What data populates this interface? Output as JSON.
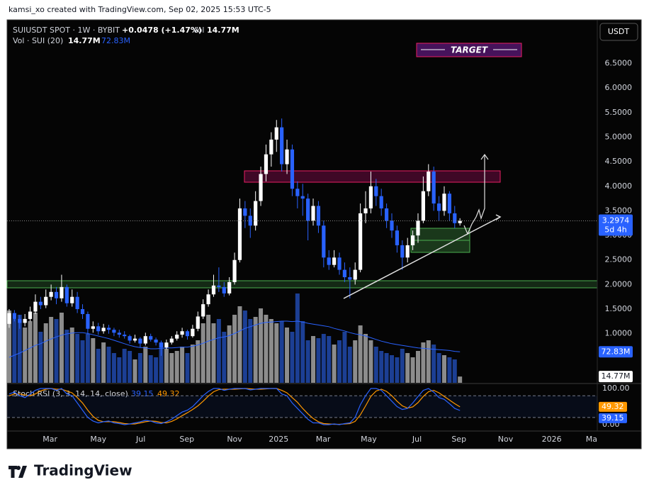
{
  "header": "kamsi_xo created with TradingView.com, Sep 02, 2025 15:53 UTC-5",
  "footer_logo": "TradingView",
  "chart_data": [
    {
      "type": "candlestick",
      "title": "SUIUSDT SPOT · 1W · BYBIT",
      "change": "+0.0478 (+1.47%)",
      "volume_label": "Vol",
      "currency": "USDT",
      "annotation": "TARGET",
      "last_price": 3.2974,
      "countdown": "5d 4h",
      "up_color": "#ffffff",
      "down_color": "#2962ff",
      "xlim": [
        -0.4,
        112.2
      ],
      "xticks": [
        {
          "value": 7.8,
          "label": "Mar"
        },
        {
          "value": 17.0,
          "label": "May"
        },
        {
          "value": 25.1,
          "label": "Jul"
        },
        {
          "value": 33.9,
          "label": "Sep"
        },
        {
          "value": 43.0,
          "label": "Nov"
        },
        {
          "value": 51.4,
          "label": "2025"
        },
        {
          "value": 59.9,
          "label": "Mar"
        },
        {
          "value": 68.6,
          "label": "May"
        },
        {
          "value": 77.8,
          "label": "Jul"
        },
        {
          "value": 85.8,
          "label": "Sep"
        },
        {
          "value": 94.7,
          "label": "Nov"
        },
        {
          "value": 103.5,
          "label": "2026"
        },
        {
          "value": 111.1,
          "label": "Ma"
        }
      ],
      "ylim": [
        0,
        7.33
      ],
      "yticks": [
        {
          "value": 1,
          "label": "1.0000"
        },
        {
          "value": 1.5,
          "label": "1.5000"
        },
        {
          "value": 2,
          "label": "2.0000"
        },
        {
          "value": 2.5,
          "label": "2.5000"
        },
        {
          "value": 3,
          "label": "3.0000"
        },
        {
          "value": 3.5,
          "label": "3.5000"
        },
        {
          "value": 4,
          "label": "4.0000"
        },
        {
          "value": 4.5,
          "label": "4.5000"
        },
        {
          "value": 5,
          "label": "5.0000"
        },
        {
          "value": 5.5,
          "label": "5.5000"
        },
        {
          "value": 6,
          "label": "6.0000"
        },
        {
          "value": 6.5,
          "label": "6.5000"
        }
      ],
      "candles": [
        [
          1.2,
          1.5,
          1.12,
          1.42
        ],
        [
          1.42,
          1.48,
          1.25,
          1.3
        ],
        [
          1.3,
          1.38,
          1.1,
          1.22
        ],
        [
          1.22,
          1.4,
          1.15,
          1.3
        ],
        [
          1.3,
          1.55,
          1.25,
          1.45
        ],
        [
          1.45,
          1.8,
          1.4,
          1.65
        ],
        [
          1.65,
          1.75,
          1.5,
          1.58
        ],
        [
          1.58,
          1.9,
          1.52,
          1.75
        ],
        [
          1.75,
          2.0,
          1.68,
          1.85
        ],
        [
          1.85,
          1.95,
          1.6,
          1.72
        ],
        [
          1.72,
          2.2,
          1.65,
          1.95
        ],
        [
          1.95,
          2.0,
          1.55,
          1.62
        ],
        [
          1.62,
          1.9,
          1.55,
          1.75
        ],
        [
          1.75,
          1.85,
          1.42,
          1.5
        ],
        [
          1.5,
          1.6,
          1.3,
          1.4
        ],
        [
          1.4,
          1.45,
          0.98,
          1.1
        ],
        [
          1.1,
          1.25,
          1.02,
          1.15
        ],
        [
          1.15,
          1.22,
          0.98,
          1.05
        ],
        [
          1.05,
          1.2,
          1.0,
          1.12
        ],
        [
          1.12,
          1.18,
          1.0,
          1.08
        ],
        [
          1.08,
          1.12,
          0.95,
          1.02
        ],
        [
          1.02,
          1.08,
          0.92,
          0.98
        ],
        [
          0.98,
          1.05,
          0.9,
          0.95
        ],
        [
          0.95,
          0.98,
          0.8,
          0.86
        ],
        [
          0.86,
          0.98,
          0.82,
          0.9
        ],
        [
          0.9,
          0.93,
          0.72,
          0.8
        ],
        [
          0.8,
          1.02,
          0.76,
          0.95
        ],
        [
          0.95,
          1.0,
          0.84,
          0.88
        ],
        [
          0.88,
          0.92,
          0.76,
          0.82
        ],
        [
          0.82,
          0.86,
          0.55,
          0.72
        ],
        [
          0.72,
          0.88,
          0.68,
          0.82
        ],
        [
          0.82,
          0.95,
          0.78,
          0.9
        ],
        [
          0.9,
          1.05,
          0.86,
          0.98
        ],
        [
          0.98,
          1.12,
          0.92,
          1.05
        ],
        [
          1.05,
          1.08,
          0.88,
          0.95
        ],
        [
          0.95,
          1.18,
          0.92,
          1.1
        ],
        [
          1.1,
          1.45,
          1.05,
          1.35
        ],
        [
          1.35,
          1.7,
          1.3,
          1.6
        ],
        [
          1.6,
          1.9,
          1.55,
          1.8
        ],
        [
          1.8,
          2.2,
          1.75,
          1.98
        ],
        [
          1.98,
          2.35,
          1.85,
          1.95
        ],
        [
          1.95,
          2.05,
          1.75,
          1.82
        ],
        [
          1.82,
          2.15,
          1.78,
          2.05
        ],
        [
          2.05,
          2.65,
          2.0,
          2.5
        ],
        [
          2.5,
          3.75,
          2.45,
          3.55
        ],
        [
          3.55,
          3.7,
          3.15,
          3.4
        ],
        [
          3.4,
          3.55,
          2.95,
          3.2
        ],
        [
          3.2,
          3.9,
          3.1,
          3.7
        ],
        [
          3.7,
          4.4,
          3.6,
          4.25
        ],
        [
          4.25,
          4.85,
          4.1,
          4.65
        ],
        [
          4.65,
          5.1,
          4.4,
          4.95
        ],
        [
          4.95,
          5.35,
          4.7,
          5.2
        ],
        [
          5.2,
          5.38,
          4.3,
          4.45
        ],
        [
          4.45,
          4.95,
          4.25,
          4.75
        ],
        [
          4.75,
          4.85,
          3.8,
          3.95
        ],
        [
          3.95,
          4.1,
          3.55,
          3.8
        ],
        [
          3.8,
          4.05,
          3.4,
          3.75
        ],
        [
          3.75,
          3.85,
          2.9,
          3.3
        ],
        [
          3.3,
          3.75,
          3.2,
          3.6
        ],
        [
          3.6,
          3.7,
          3.05,
          3.2
        ],
        [
          3.2,
          3.3,
          2.35,
          2.55
        ],
        [
          2.55,
          2.7,
          2.3,
          2.4
        ],
        [
          2.4,
          2.7,
          2.35,
          2.55
        ],
        [
          2.55,
          2.65,
          2.2,
          2.3
        ],
        [
          2.3,
          2.45,
          2.05,
          2.15
        ],
        [
          2.15,
          2.35,
          1.72,
          2.1
        ],
        [
          2.1,
          2.45,
          2.0,
          2.3
        ],
        [
          2.3,
          3.65,
          2.25,
          3.45
        ],
        [
          3.45,
          3.9,
          3.25,
          3.55
        ],
        [
          3.55,
          4.3,
          3.45,
          4.0
        ],
        [
          4.0,
          4.15,
          3.6,
          3.8
        ],
        [
          3.8,
          3.95,
          3.4,
          3.55
        ],
        [
          3.55,
          3.65,
          3.15,
          3.3
        ],
        [
          3.3,
          3.45,
          2.95,
          3.1
        ],
        [
          3.1,
          3.2,
          2.65,
          2.8
        ],
        [
          2.8,
          2.9,
          2.3,
          2.55
        ],
        [
          2.55,
          2.95,
          2.45,
          2.8
        ],
        [
          2.8,
          3.1,
          2.7,
          3.0
        ],
        [
          3.0,
          3.45,
          2.85,
          3.3
        ],
        [
          3.3,
          4.2,
          3.25,
          3.9
        ],
        [
          3.9,
          4.45,
          3.8,
          4.3
        ],
        [
          4.3,
          4.4,
          3.5,
          3.65
        ],
        [
          3.65,
          3.8,
          3.3,
          3.5
        ],
        [
          3.5,
          4.0,
          3.4,
          3.85
        ],
        [
          3.85,
          3.9,
          3.3,
          3.45
        ],
        [
          3.45,
          3.6,
          3.15,
          3.25
        ],
        [
          3.25,
          3.35,
          3.2,
          3.2974
        ]
      ]
    },
    {
      "type": "bar",
      "title": "Vol · SUI (20)",
      "legend_values": [
        "14.77M",
        "72.83M"
      ],
      "ylim": [
        0,
        220
      ],
      "up_color": "#8c8c8c",
      "down_color": "#1c3f94",
      "ma_color": "#2962ff",
      "values": [
        170,
        150,
        160,
        130,
        145,
        165,
        120,
        140,
        155,
        150,
        165,
        125,
        130,
        115,
        100,
        115,
        105,
        80,
        95,
        85,
        70,
        60,
        80,
        75,
        55,
        70,
        85,
        65,
        60,
        95,
        80,
        70,
        75,
        85,
        70,
        90,
        100,
        140,
        160,
        140,
        150,
        120,
        135,
        160,
        180,
        170,
        150,
        155,
        175,
        160,
        150,
        140,
        145,
        130,
        120,
        210,
        145,
        100,
        110,
        105,
        115,
        110,
        90,
        100,
        120,
        85,
        100,
        135,
        115,
        100,
        85,
        75,
        70,
        65,
        60,
        80,
        70,
        60,
        75,
        95,
        100,
        90,
        70,
        65,
        60,
        55,
        14.77
      ],
      "ma": [
        60,
        65,
        70,
        76,
        82,
        88,
        92,
        98,
        103,
        108,
        112,
        115,
        117,
        118,
        118,
        116,
        113,
        110,
        107,
        104,
        100,
        96,
        92,
        88,
        85,
        83,
        82,
        80,
        80,
        81,
        82,
        82,
        83,
        84,
        84,
        86,
        89,
        93,
        98,
        102,
        106,
        108,
        111,
        116,
        122,
        128,
        132,
        136,
        140,
        142,
        143,
        144,
        145,
        145,
        144,
        145,
        143,
        140,
        138,
        136,
        134,
        132,
        128,
        125,
        122,
        118,
        115,
        113,
        110,
        106,
        102,
        98,
        95,
        92,
        90,
        88,
        86,
        84,
        82,
        81,
        80,
        79,
        78,
        77,
        76,
        74,
        72.83
      ]
    },
    {
      "type": "line",
      "title": "Stoch RSI (3, 3, 14, 14, close)",
      "ylim": [
        -17.6,
        109.8
      ],
      "yticks": [
        {
          "value": 100,
          "label": "100.00"
        },
        {
          "value": 0,
          "label": "0.00"
        }
      ],
      "bands": [
        20,
        80
      ],
      "series": [
        {
          "color": "#2962ff",
          "value_label": "39.15",
          "values": [
            85,
            90,
            80,
            75,
            85,
            95,
            100,
            100,
            100,
            95,
            100,
            85,
            80,
            60,
            40,
            20,
            10,
            5,
            8,
            10,
            5,
            3,
            0,
            2,
            5,
            8,
            12,
            10,
            5,
            3,
            8,
            15,
            25,
            35,
            40,
            50,
            65,
            80,
            92,
            100,
            100,
            95,
            98,
            100,
            100,
            100,
            96,
            98,
            100,
            100,
            100,
            100,
            85,
            80,
            60,
            45,
            30,
            15,
            5,
            5,
            0,
            0,
            2,
            0,
            3,
            5,
            20,
            55,
            80,
            100,
            100,
            95,
            80,
            65,
            50,
            42,
            45,
            60,
            78,
            95,
            100,
            90,
            75,
            70,
            58,
            45,
            39.15
          ]
        },
        {
          "color": "#ff9800",
          "value_label": "49.32",
          "values": [
            80,
            85,
            85,
            82,
            80,
            85,
            93,
            98,
            100,
            98,
            98,
            93,
            88,
            75,
            60,
            40,
            23,
            12,
            8,
            8,
            8,
            6,
            3,
            2,
            2,
            5,
            8,
            10,
            9,
            6,
            5,
            9,
            16,
            25,
            33,
            42,
            52,
            65,
            79,
            91,
            97,
            98,
            98,
            98,
            99,
            100,
            99,
            98,
            98,
            99,
            100,
            100,
            95,
            88,
            75,
            62,
            45,
            30,
            17,
            8,
            3,
            2,
            1,
            1,
            2,
            3,
            9,
            27,
            52,
            78,
            93,
            98,
            92,
            80,
            65,
            52,
            46,
            49,
            61,
            78,
            91,
            95,
            88,
            78,
            68,
            58,
            49.32
          ]
        }
      ]
    }
  ]
}
